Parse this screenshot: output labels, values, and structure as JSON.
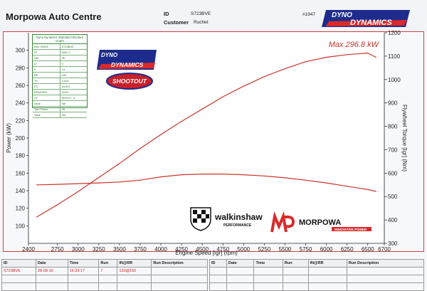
{
  "header": {
    "company": "Morpowa Auto Centre",
    "id_label": "ID",
    "id_value": "S723BVE",
    "customer_label": "Customer",
    "customer_value": "Ruchet",
    "sheet_no": "#1947",
    "brand": "DYNO DYNAMICS"
  },
  "infobox": {
    "title": "Dyno Dynamics Standard Shootout Graph",
    "rows": [
      [
        "Run 00003",
        "S723BVE"
      ],
      [
        "ST",
        "SAE-J"
      ],
      [
        "SM",
        "36"
      ],
      [
        "LT",
        "3"
      ],
      [
        "C",
        "14"
      ],
      [
        "RE",
        "150"
      ],
      [
        "Th",
        "4.915"
      ],
      [
        "IT2",
        "18.637"
      ],
      [
        "RPM/SPD",
        "3/100"
      ],
      [
        "CF",
        "SHOOT_3"
      ],
      [
        "Gear",
        "4th"
      ],
      [
        "Tyre Press.",
        "45"
      ],
      [
        "Gear",
        "4th"
      ]
    ]
  },
  "logos": {
    "mid_top": "DYNO",
    "mid_bottom": "DYNAMICS",
    "shootout": "SHOOTOUT",
    "walkinshaw": "walkinshaw",
    "walkinshaw_sub": "PERFORMANCE",
    "morpowa": "MORPOWA",
    "morpowa_sub": "INNOVATIVE POWER"
  },
  "chart_data": {
    "type": "line",
    "annotation": "Max 296.8 kW",
    "xlabel": "Engine Speed [Igr] (rpm)",
    "ylabel_left": "Power (kW)",
    "ylabel_right": "Flywheel Torque [Igr] (Nm)",
    "xlim": [
      2400,
      6700
    ],
    "ylim_left": [
      80,
      320
    ],
    "ylim_right": [
      300,
      1200
    ],
    "xticks": [
      2400,
      2750,
      3000,
      3250,
      3500,
      3750,
      4000,
      4250,
      4500,
      4750,
      5000,
      5250,
      5500,
      5750,
      6000,
      6250,
      6500,
      6700
    ],
    "yticks_left": [
      100,
      120,
      140,
      160,
      180,
      200,
      220,
      240,
      260,
      280,
      300
    ],
    "yticks_right": [
      300,
      400,
      500,
      600,
      700,
      800,
      900,
      1000,
      1100,
      1200
    ],
    "series": [
      {
        "axis": "left",
        "x": [
          2500,
          2750,
          3000,
          3250,
          3500,
          3750,
          4000,
          4250,
          4500,
          4750,
          5000,
          5250,
          5500,
          5750,
          6000,
          6250,
          6500,
          6600
        ],
        "values": [
          110,
          124,
          139,
          155,
          171,
          188,
          204,
          219,
          233,
          247,
          259,
          270,
          279,
          287,
          292,
          295,
          296.8,
          292
        ]
      },
      {
        "axis": "right",
        "x": [
          2500,
          2750,
          3000,
          3250,
          3500,
          3750,
          4000,
          4250,
          4500,
          4750,
          5000,
          5250,
          5500,
          5750,
          6000,
          6250,
          6500,
          6600
        ],
        "values": [
          550,
          552,
          555,
          558,
          562,
          570,
          584,
          593,
          596,
          596,
          593,
          588,
          580,
          570,
          558,
          544,
          530,
          522
        ]
      }
    ],
    "grid": false,
    "color": "#c8352a"
  },
  "table": {
    "headers": [
      "ID",
      "Date",
      "Time",
      "Run",
      "IN@RR",
      "Run Description"
    ],
    "rows": [
      [
        "S723BVE",
        "28-08-16",
        "16:33:17",
        "7",
        "120@150",
        ""
      ],
      [
        "",
        "",
        "",
        "",
        "",
        ""
      ],
      [
        "",
        "",
        "",
        "",
        "",
        ""
      ]
    ],
    "headers_right": [
      "ID",
      "Date",
      "Time",
      "Run",
      "IN@RR",
      "Run Description"
    ]
  }
}
